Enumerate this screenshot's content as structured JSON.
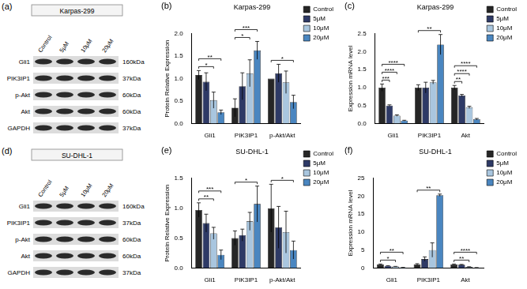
{
  "blots": [
    {
      "panel": "(a)",
      "title": "Karpas-299",
      "lanes": [
        "Control",
        "5μM",
        "10μM",
        "20μM"
      ],
      "rows": [
        {
          "protein": "Gli1",
          "size": "160kDa"
        },
        {
          "protein": "PIK3IP1",
          "size": "37kDa"
        },
        {
          "protein": "p-Akt",
          "size": "60kDa"
        },
        {
          "protein": "Akt",
          "size": "60kDa"
        },
        {
          "protein": "GAPDH",
          "size": "37kDa"
        }
      ]
    },
    {
      "panel": "(d)",
      "title": "SU-DHL-1",
      "lanes": [
        "Control",
        "5μM",
        "10μM",
        "20μM"
      ],
      "rows": [
        {
          "protein": "Gli1",
          "size": "160kDa"
        },
        {
          "protein": "PIK3IP1",
          "size": "37kDa"
        },
        {
          "protein": "p-Akt",
          "size": "60kDa"
        },
        {
          "protein": "Akt",
          "size": "60kDa"
        },
        {
          "protein": "GAPDH",
          "size": "37kDa"
        }
      ]
    }
  ],
  "chart_data": [
    {
      "type": "bar",
      "panel": "(b)",
      "title": "Karpas-299",
      "y_label": "Protein Relative Expression",
      "categories": [
        "Gli1",
        "PIK3IP1",
        "p-Akt/Akt"
      ],
      "series": [
        {
          "name": "Control",
          "color": "#262626",
          "values": [
            1.08,
            0.35,
            1.0
          ],
          "errors": [
            0.1,
            0.2,
            0.0
          ]
        },
        {
          "name": "5μM",
          "color": "#2e3a66",
          "values": [
            0.93,
            0.83,
            1.12
          ],
          "errors": [
            0.2,
            0.3,
            0.2
          ]
        },
        {
          "name": "10μM",
          "color": "#a9c6df",
          "values": [
            0.52,
            1.12,
            0.92
          ],
          "errors": [
            0.18,
            0.3,
            0.25
          ]
        },
        {
          "name": "20μM",
          "color": "#4a86c0",
          "values": [
            0.25,
            1.63,
            0.48
          ],
          "errors": [
            0.05,
            0.2,
            0.15
          ]
        }
      ],
      "ylim": [
        0,
        2
      ],
      "yticks": [
        {
          "value": 0,
          "label": "0.0"
        },
        {
          "value": 0.5,
          "label": "0.5"
        },
        {
          "value": 1,
          "label": "1.0"
        },
        {
          "value": 1.5,
          "label": "1.5"
        },
        {
          "value": 2,
          "label": "2.0"
        }
      ],
      "grid": false,
      "legend": "right",
      "significance": [
        {
          "category": "Gli1",
          "from": "Control",
          "to": "10μM",
          "label": "*"
        },
        {
          "category": "Gli1",
          "from": "Control",
          "to": "20μM",
          "label": "**"
        },
        {
          "category": "PIK3IP1",
          "from": "Control",
          "to": "10μM",
          "label": "*"
        },
        {
          "category": "PIK3IP1",
          "from": "Control",
          "to": "20μM",
          "label": "***"
        },
        {
          "category": "p-Akt/Akt",
          "from": "Control",
          "to": "20μM",
          "label": "*"
        }
      ]
    },
    {
      "type": "bar",
      "panel": "(c)",
      "title": "Karpas-299",
      "y_label": "Expression mRNA level",
      "categories": [
        "Gli1",
        "PIK3IP1",
        "Akt"
      ],
      "series": [
        {
          "name": "Control",
          "color": "#262626",
          "values": [
            1.0,
            1.0,
            1.0
          ],
          "errors": [
            0.1,
            0.08,
            0.06
          ]
        },
        {
          "name": "5μM",
          "color": "#2e3a66",
          "values": [
            0.5,
            1.0,
            0.78
          ],
          "errors": [
            0.02,
            0.15,
            0.03
          ]
        },
        {
          "name": "10μM",
          "color": "#a9c6df",
          "values": [
            0.22,
            1.15,
            0.45
          ],
          "errors": [
            0.02,
            0.05,
            0.03
          ]
        },
        {
          "name": "20μM",
          "color": "#4a86c0",
          "values": [
            0.08,
            2.2,
            0.12
          ],
          "errors": [
            0.01,
            0.28,
            0.02
          ]
        }
      ],
      "ylim": [
        0,
        2.5
      ],
      "yticks": [
        {
          "value": 0,
          "label": "0.0"
        },
        {
          "value": 0.5,
          "label": "0.5"
        },
        {
          "value": 1,
          "label": "1.0"
        },
        {
          "value": 1.5,
          "label": "1.5"
        },
        {
          "value": 2,
          "label": "2.0"
        },
        {
          "value": 2.5,
          "label": "2.5"
        }
      ],
      "grid": false,
      "legend": "right",
      "significance": [
        {
          "category": "Gli1",
          "from": "Control",
          "to": "5μM",
          "label": "***"
        },
        {
          "category": "Gli1",
          "from": "Control",
          "to": "10μM",
          "label": "****"
        },
        {
          "category": "Gli1",
          "from": "Control",
          "to": "20μM",
          "label": "****"
        },
        {
          "category": "PIK3IP1",
          "from": "Control",
          "to": "20μM",
          "label": "**"
        },
        {
          "category": "Akt",
          "from": "Control",
          "to": "5μM",
          "label": "**"
        },
        {
          "category": "Akt",
          "from": "Control",
          "to": "10μM",
          "label": "****"
        },
        {
          "category": "Akt",
          "from": "Control",
          "to": "20μM",
          "label": "****"
        }
      ]
    },
    {
      "type": "bar",
      "panel": "(e)",
      "title": "SU-DHL-1",
      "y_label": "Protein Relative Expression",
      "categories": [
        "Gli1",
        "PIK3IP1",
        "p-Akt/Akt"
      ],
      "series": [
        {
          "name": "Control",
          "color": "#262626",
          "values": [
            0.97,
            0.5,
            1.0
          ],
          "errors": [
            0.12,
            0.12,
            0.4
          ]
        },
        {
          "name": "5μM",
          "color": "#2e3a66",
          "values": [
            0.75,
            0.55,
            0.68
          ],
          "errors": [
            0.15,
            0.1,
            0.35
          ]
        },
        {
          "name": "10μM",
          "color": "#a9c6df",
          "values": [
            0.58,
            0.78,
            0.6
          ],
          "errors": [
            0.1,
            0.15,
            0.35
          ]
        },
        {
          "name": "20μM",
          "color": "#4a86c0",
          "values": [
            0.22,
            1.07,
            0.3
          ],
          "errors": [
            0.08,
            0.3,
            0.15
          ]
        }
      ],
      "ylim": [
        0,
        1.5
      ],
      "yticks": [
        {
          "value": 0,
          "label": "0.0"
        },
        {
          "value": 0.5,
          "label": "0.5"
        },
        {
          "value": 1,
          "label": "1.0"
        },
        {
          "value": 1.5,
          "label": "1.5"
        }
      ],
      "grid": false,
      "legend": "right",
      "significance": [
        {
          "category": "Gli1",
          "from": "Control",
          "to": "10μM",
          "label": "**"
        },
        {
          "category": "Gli1",
          "from": "Control",
          "to": "20μM",
          "label": "***"
        },
        {
          "category": "PIK3IP1",
          "from": "Control",
          "to": "20μM",
          "label": "*"
        },
        {
          "category": "p-Akt/Akt",
          "from": "Control",
          "to": "20μM",
          "label": "*"
        }
      ]
    },
    {
      "type": "bar",
      "panel": "(f)",
      "title": "SU-DHL-1",
      "y_label": "Expression mRNA level",
      "categories": [
        "Gli1",
        "PIK3IP1",
        "Akt"
      ],
      "series": [
        {
          "name": "Control",
          "color": "#262626",
          "values": [
            1.0,
            1.0,
            1.0
          ],
          "errors": [
            0.1,
            0.2,
            0.1
          ]
        },
        {
          "name": "5μM",
          "color": "#2e3a66",
          "values": [
            0.6,
            2.5,
            0.9
          ],
          "errors": [
            0.05,
            0.6,
            0.1
          ]
        },
        {
          "name": "10μM",
          "color": "#a9c6df",
          "values": [
            0.4,
            5.0,
            0.3
          ],
          "errors": [
            0.05,
            2.0,
            0.05
          ]
        },
        {
          "name": "20μM",
          "color": "#4a86c0",
          "values": [
            0.15,
            20.3,
            0.1
          ],
          "errors": [
            0.02,
            0.3,
            0.02
          ]
        }
      ],
      "ylim": [
        0,
        25
      ],
      "yticks": [
        0,
        5,
        10,
        15,
        20,
        25
      ],
      "grid": false,
      "legend": "right",
      "significance": [
        {
          "category": "Gli1",
          "from": "Control",
          "to": "10μM",
          "label": "*"
        },
        {
          "category": "Gli1",
          "from": "Control",
          "to": "20μM",
          "label": "**"
        },
        {
          "category": "PIK3IP1",
          "from": "Control",
          "to": "20μM",
          "label": "**"
        },
        {
          "category": "Akt",
          "from": "Control",
          "to": "10μM",
          "label": "**"
        },
        {
          "category": "Akt",
          "from": "Control",
          "to": "20μM",
          "label": "****"
        }
      ]
    }
  ]
}
